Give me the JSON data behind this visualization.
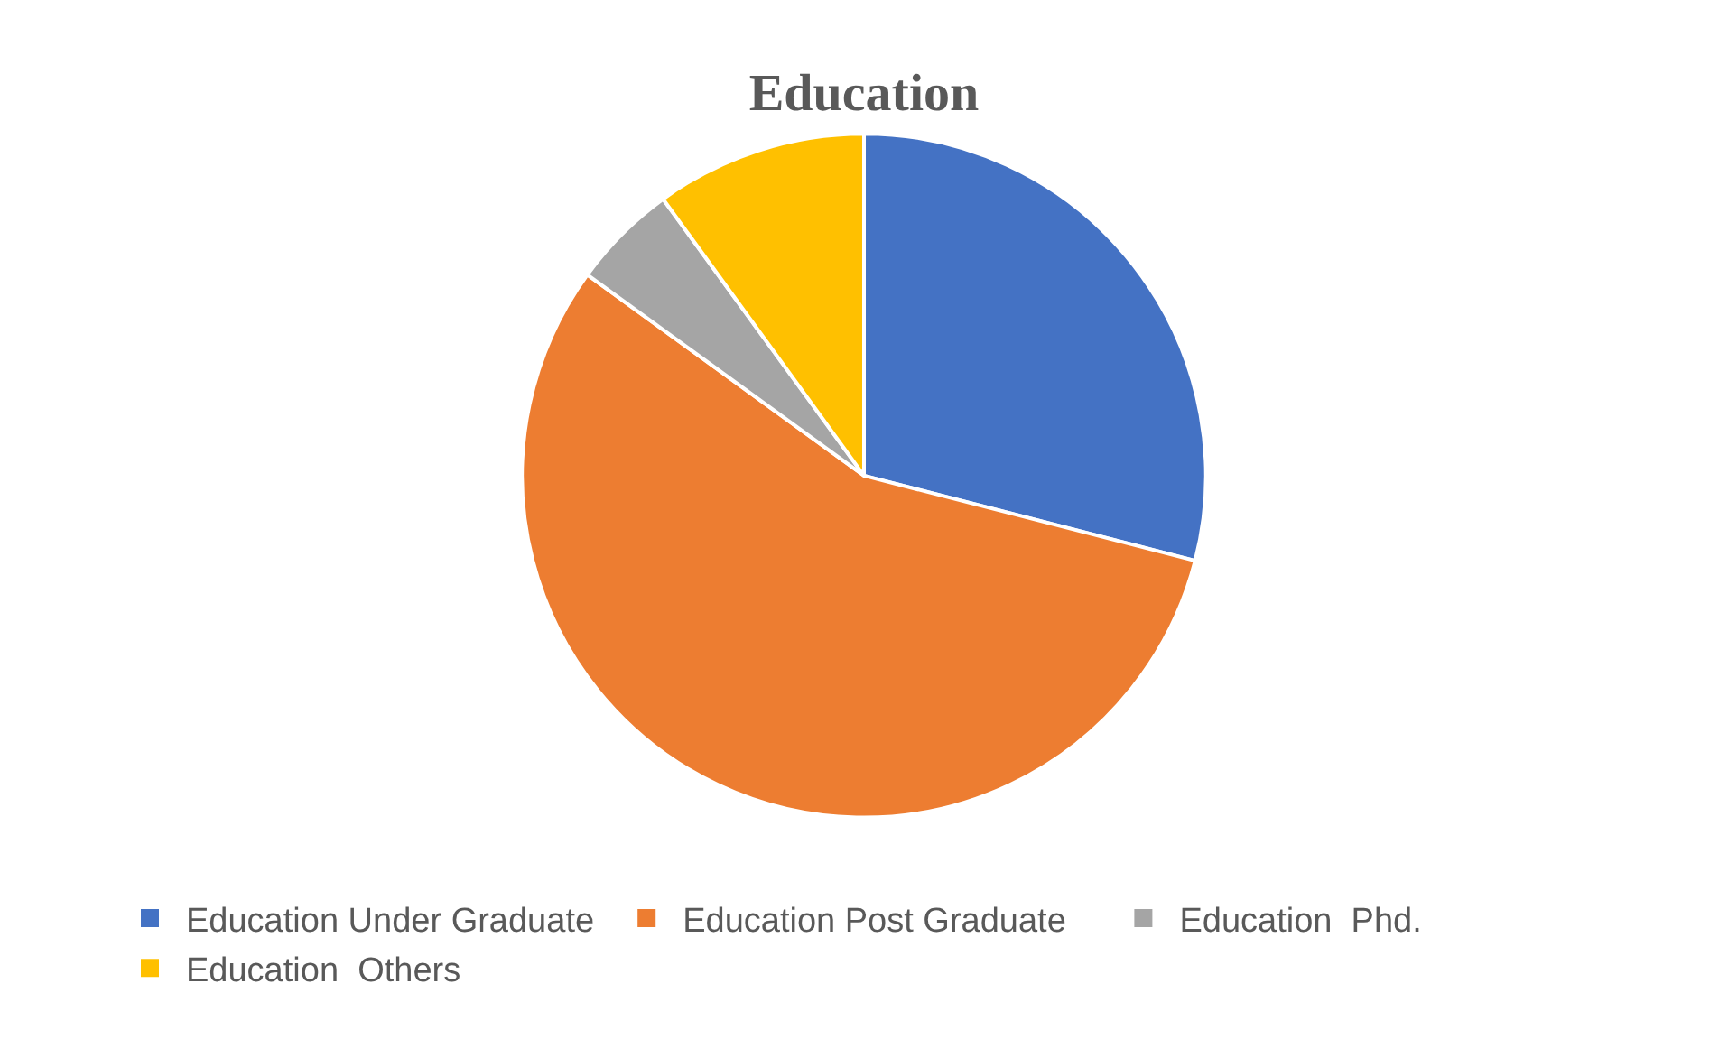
{
  "chart_data": {
    "type": "pie",
    "title": "Education",
    "categories": [
      "Education Under Graduate",
      "Education Post Graduate",
      "Education  Phd.",
      "Education  Others"
    ],
    "values": [
      29,
      56,
      5,
      10
    ],
    "colors": [
      "#4472c4",
      "#ed7d31",
      "#a5a5a5",
      "#ffc000"
    ],
    "legend": "bottom"
  }
}
